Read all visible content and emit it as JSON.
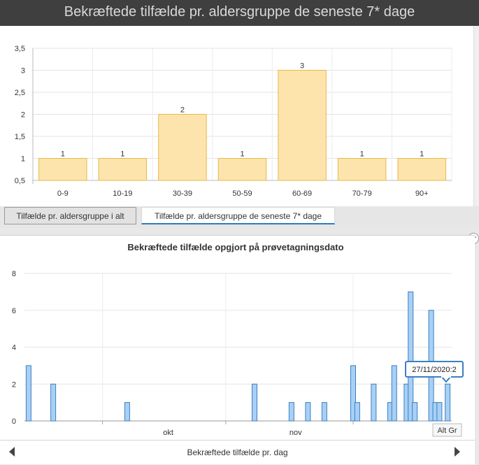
{
  "header": {
    "title": "Bekræftede tilfælde pr. aldersgruppe de seneste 7* dage"
  },
  "tabs": [
    {
      "label": "Tilfælde pr. aldersgruppe i alt",
      "active": false
    },
    {
      "label": "Tilfælde pr. aldersgruppe de seneste 7* dage",
      "active": true
    }
  ],
  "footer": {
    "label": "Bekræftede tilfælde pr. dag"
  },
  "tooltip": {
    "text": "27/11/2020:2"
  },
  "corner_label": "Alt Gr",
  "colors": {
    "bar_fill": "#fde4ac",
    "bar_stroke": "#e8b84a",
    "daily_fill": "#a8d0f5",
    "daily_stroke": "#3c7fc2",
    "accent": "#2f7bbf"
  },
  "chart_data": [
    {
      "type": "bar",
      "title": "",
      "categories": [
        "0-9",
        "10-19",
        "30-39",
        "50-59",
        "60-69",
        "70-79",
        "90+"
      ],
      "values": [
        1,
        1,
        2,
        1,
        3,
        1,
        1
      ],
      "ytick_labels": [
        "0,5",
        "1",
        "1,5",
        "2",
        "2,5",
        "3",
        "3,5"
      ],
      "ylim": [
        0.5,
        3.5
      ],
      "grid": true,
      "data_labels": true
    },
    {
      "type": "bar",
      "title": "Bekræftede tilfælde opgjort på prøvetagningsdato",
      "x_tick_labels": [
        "okt",
        "nov"
      ],
      "ytick_labels": [
        "0",
        "2",
        "4",
        "6",
        "8"
      ],
      "ylim": [
        0,
        8
      ],
      "grid": true,
      "values": [
        {
          "date": "2020-08-28",
          "value": 3
        },
        {
          "date": "2020-09-03",
          "value": 2
        },
        {
          "date": "2020-09-21",
          "value": 1
        },
        {
          "date": "2020-10-22",
          "value": 2
        },
        {
          "date": "2020-10-31",
          "value": 1
        },
        {
          "date": "2020-11-04",
          "value": 1
        },
        {
          "date": "2020-11-08",
          "value": 1
        },
        {
          "date": "2020-11-15",
          "value": 3
        },
        {
          "date": "2020-11-16",
          "value": 1
        },
        {
          "date": "2020-11-20",
          "value": 2
        },
        {
          "date": "2020-11-24",
          "value": 1
        },
        {
          "date": "2020-11-25",
          "value": 3
        },
        {
          "date": "2020-11-28",
          "value": 2
        },
        {
          "date": "2020-11-29",
          "value": 7
        },
        {
          "date": "2020-11-30",
          "value": 1
        },
        {
          "date": "2020-12-04",
          "value": 6
        },
        {
          "date": "2020-12-05",
          "value": 1
        },
        {
          "date": "2020-12-06",
          "value": 1
        },
        {
          "date": "2020-12-08",
          "value": 2
        }
      ]
    }
  ]
}
